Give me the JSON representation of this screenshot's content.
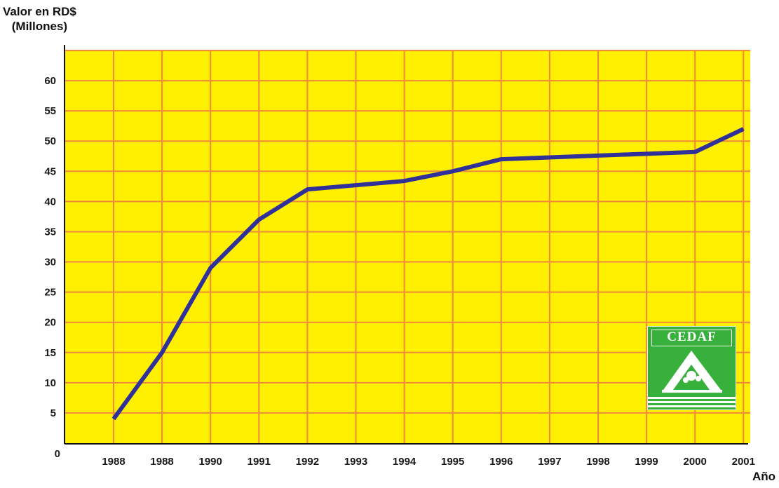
{
  "chart_data": {
    "type": "line",
    "ylabel_line1": "Valor en RD$",
    "ylabel_line2": "(Millones)",
    "xlabel": "Año",
    "ylim": [
      0,
      65
    ],
    "yticks": [
      "0",
      "5",
      "10",
      "15",
      "20",
      "25",
      "30",
      "35",
      "40",
      "45",
      "50",
      "55",
      "60"
    ],
    "categories": [
      "1988",
      "1988",
      "1990",
      "1991",
      "1992",
      "1993",
      "1994",
      "1995",
      "1996",
      "1997",
      "1998",
      "1999",
      "2000",
      "2001"
    ],
    "values": [
      4,
      15,
      29,
      37,
      42,
      42.7,
      43.4,
      45,
      47,
      47.3,
      47.6,
      47.9,
      48.2,
      52
    ],
    "grid": true,
    "colors": {
      "background": "#ffef00",
      "grid": "#f08a3a",
      "line": "#30309a",
      "axis": "#111111"
    }
  },
  "logo": {
    "text": "CEDAF",
    "colors": {
      "background": "#37b13c",
      "mark": "#ffffff"
    }
  }
}
